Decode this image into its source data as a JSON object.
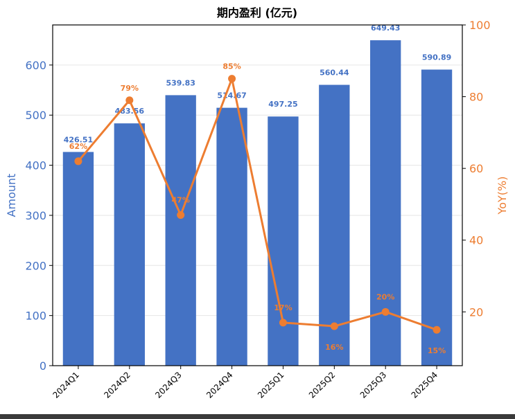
{
  "chart_data": {
    "type": "bar",
    "title": "期内盈利 (亿元)",
    "categories": [
      "2024Q1",
      "2024Q2",
      "2024Q3",
      "2024Q4",
      "2025Q1",
      "2025Q2",
      "2025Q3",
      "2025Q4"
    ],
    "series": [
      {
        "name": "Amount",
        "type": "bar",
        "axis": "left",
        "values": [
          426.51,
          483.56,
          539.83,
          514.67,
          497.25,
          560.44,
          649.43,
          590.89
        ],
        "labels": [
          "426.51",
          "483.56",
          "539.83",
          "514.67",
          "497.25",
          "560.44",
          "649.43",
          "590.89"
        ]
      },
      {
        "name": "YoY(%)",
        "type": "line",
        "axis": "right",
        "values": [
          62,
          79,
          47,
          85,
          17,
          16,
          20,
          15
        ],
        "labels": [
          "62%",
          "79%",
          "47%",
          "85%",
          "17%",
          "16%",
          "20%",
          "15%"
        ]
      }
    ],
    "y_left": {
      "label": "Amount",
      "ylim": [
        0,
        680
      ],
      "ticks": [
        "0",
        "100",
        "200",
        "300",
        "400",
        "500",
        "600"
      ]
    },
    "y_right": {
      "label": "YoY(%)",
      "ylim": [
        5,
        100
      ],
      "ticks": [
        "20",
        "40",
        "60",
        "80",
        "100"
      ]
    },
    "grid": true,
    "colors": {
      "bar": "#4472c4",
      "line": "#ed7d31",
      "left_axis": "#4472c4",
      "right_axis": "#ed7d31",
      "title": "#000000"
    }
  }
}
